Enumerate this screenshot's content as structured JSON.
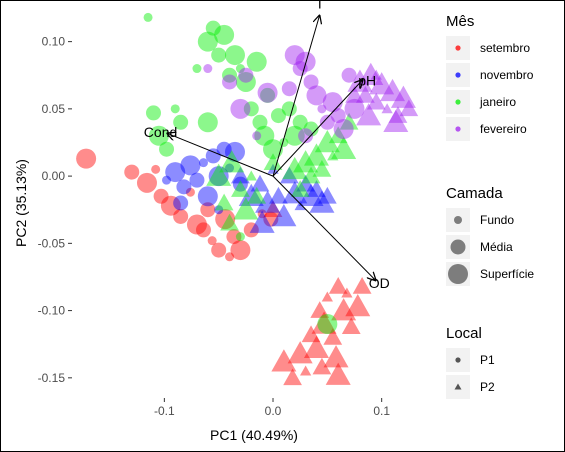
{
  "chart_data": {
    "type": "scatter",
    "title": "",
    "xlabel": "PC1 (40.49%)",
    "ylabel": "PC2 (35.13%)",
    "xlim": [
      -0.185,
      0.15
    ],
    "ylim": [
      -0.165,
      0.125
    ],
    "x_ticks": [
      -0.1,
      0.0,
      0.1
    ],
    "x_tick_labels": [
      "-0.1",
      "0.0",
      "0.1"
    ],
    "y_ticks": [
      -0.15,
      -0.1,
      -0.05,
      0.0,
      0.05,
      0.1
    ],
    "y_tick_labels": [
      "-0.15",
      "-0.10",
      "-0.05",
      "0.00",
      "0.05",
      "0.10"
    ],
    "grid": false,
    "colors": {
      "setembro": "#ff0000",
      "novembro": "#0000ff",
      "janeiro": "#00ee00",
      "fevereiro": "#a020f0"
    },
    "vectors": [
      {
        "label": "T",
        "x": 0.043,
        "y": 0.12
      },
      {
        "label": "pH",
        "x": 0.083,
        "y": 0.072
      },
      {
        "label": "Cond",
        "x": -0.098,
        "y": 0.032
      },
      {
        "label": "OD",
        "x": 0.095,
        "y": -0.078
      }
    ],
    "legends": [
      {
        "title": "Mês",
        "kind": "color",
        "items": [
          "setembro",
          "novembro",
          "janeiro",
          "fevereiro"
        ]
      },
      {
        "title": "Camada",
        "kind": "size",
        "items": [
          "Fundo",
          "Média",
          "Superfície"
        ]
      },
      {
        "title": "Local",
        "kind": "shape",
        "items": [
          "P1",
          "P2"
        ]
      }
    ],
    "legend_position": "right",
    "series": [
      {
        "name": "setembro",
        "points": [
          [
            -0.172,
            0.013,
            "P1",
            "Superfície"
          ],
          [
            -0.13,
            0.003,
            "P1",
            "Média"
          ],
          [
            -0.116,
            -0.005,
            "P1",
            "Superfície"
          ],
          [
            -0.103,
            -0.015,
            "P1",
            "Média"
          ],
          [
            -0.094,
            -0.022,
            "P1",
            "Superfície"
          ],
          [
            -0.085,
            -0.03,
            "P1",
            "Média"
          ],
          [
            -0.076,
            -0.012,
            "P1",
            "Fundo"
          ],
          [
            -0.07,
            -0.036,
            "P1",
            "Superfície"
          ],
          [
            -0.064,
            -0.04,
            "P1",
            "Média"
          ],
          [
            -0.056,
            -0.048,
            "P1",
            "Fundo"
          ],
          [
            -0.05,
            -0.055,
            "P1",
            "Média"
          ],
          [
            -0.044,
            -0.032,
            "P1",
            "Superfície"
          ],
          [
            -0.036,
            -0.045,
            "P1",
            "Média"
          ],
          [
            -0.03,
            -0.055,
            "P1",
            "Superfície"
          ],
          [
            -0.02,
            -0.04,
            "P1",
            "Média"
          ],
          [
            -0.01,
            -0.028,
            "P1",
            "Fundo"
          ],
          [
            -0.108,
            0.005,
            "P1",
            "Fundo"
          ],
          [
            -0.06,
            -0.025,
            "P1",
            "Média"
          ],
          [
            -0.04,
            -0.06,
            "P1",
            "Fundo"
          ],
          [
            -0.002,
            -0.032,
            "P1",
            "Média"
          ],
          [
            0.0,
            -0.025,
            "P2",
            "Média"
          ],
          [
            0.01,
            -0.138,
            "P2",
            "Superfície"
          ],
          [
            0.018,
            -0.15,
            "P2",
            "Média"
          ],
          [
            0.025,
            -0.132,
            "P2",
            "Superfície"
          ],
          [
            0.03,
            -0.145,
            "P2",
            "Fundo"
          ],
          [
            0.035,
            -0.118,
            "P2",
            "Média"
          ],
          [
            0.04,
            -0.128,
            "P2",
            "Superfície"
          ],
          [
            0.043,
            -0.1,
            "P2",
            "Média"
          ],
          [
            0.047,
            -0.11,
            "P2",
            "Superfície"
          ],
          [
            0.05,
            -0.09,
            "P2",
            "Fundo"
          ],
          [
            0.055,
            -0.12,
            "P2",
            "Média"
          ],
          [
            0.058,
            -0.135,
            "P2",
            "Superfície"
          ],
          [
            0.06,
            -0.082,
            "P2",
            "Média"
          ],
          [
            0.065,
            -0.1,
            "P2",
            "Superfície"
          ],
          [
            0.068,
            -0.087,
            "P2",
            "Fundo"
          ],
          [
            0.072,
            -0.112,
            "P2",
            "Média"
          ],
          [
            0.078,
            -0.097,
            "P2",
            "Superfície"
          ],
          [
            0.082,
            -0.082,
            "P2",
            "Média"
          ],
          [
            0.06,
            -0.148,
            "P2",
            "Superfície"
          ],
          [
            0.045,
            -0.142,
            "P2",
            "Média"
          ]
        ]
      },
      {
        "name": "novembro",
        "points": [
          [
            -0.098,
            -0.003,
            "P1",
            "Fundo"
          ],
          [
            -0.09,
            0.003,
            "P1",
            "Superfície"
          ],
          [
            -0.082,
            -0.008,
            "P1",
            "Média"
          ],
          [
            -0.076,
            0.008,
            "P1",
            "Superfície"
          ],
          [
            -0.07,
            -0.003,
            "P1",
            "Média"
          ],
          [
            -0.064,
            0.01,
            "P1",
            "Fundo"
          ],
          [
            -0.06,
            -0.015,
            "P1",
            "Superfície"
          ],
          [
            -0.055,
            0.015,
            "P1",
            "Média"
          ],
          [
            -0.05,
            0.0,
            "P1",
            "Superfície"
          ],
          [
            -0.045,
            0.02,
            "P1",
            "Média"
          ],
          [
            -0.04,
            0.006,
            "P1",
            "Fundo"
          ],
          [
            -0.035,
            0.018,
            "P1",
            "Superfície"
          ],
          [
            -0.03,
            -0.006,
            "P1",
            "Média"
          ],
          [
            -0.085,
            -0.02,
            "P1",
            "Média"
          ],
          [
            -0.05,
            -0.025,
            "P1",
            "Fundo"
          ],
          [
            -0.03,
            0.0,
            "P2",
            "Média"
          ],
          [
            -0.02,
            -0.015,
            "P2",
            "Superfície"
          ],
          [
            -0.012,
            -0.006,
            "P2",
            "Média"
          ],
          [
            -0.005,
            -0.02,
            "P2",
            "Superfície"
          ],
          [
            0.0,
            0.005,
            "P2",
            "Fundo"
          ],
          [
            0.005,
            -0.015,
            "P2",
            "Média"
          ],
          [
            0.01,
            -0.03,
            "P2",
            "Superfície"
          ],
          [
            0.015,
            0.0,
            "P2",
            "Média"
          ],
          [
            0.02,
            -0.013,
            "P2",
            "Superfície"
          ],
          [
            0.025,
            -0.022,
            "P2",
            "Fundo"
          ],
          [
            0.03,
            -0.006,
            "P2",
            "Média"
          ],
          [
            0.035,
            -0.015,
            "P2",
            "Superfície"
          ],
          [
            0.04,
            -0.01,
            "P2",
            "Média"
          ],
          [
            0.045,
            -0.02,
            "P2",
            "Superfície"
          ],
          [
            0.05,
            -0.015,
            "P2",
            "Média"
          ],
          [
            -0.01,
            -0.035,
            "P2",
            "Superfície"
          ]
        ]
      },
      {
        "name": "janeiro",
        "points": [
          [
            -0.115,
            0.118,
            "P1",
            "Fundo"
          ],
          [
            -0.11,
            0.047,
            "P1",
            "Média"
          ],
          [
            -0.105,
            0.03,
            "P1",
            "Superfície"
          ],
          [
            -0.098,
            0.02,
            "P1",
            "Média"
          ],
          [
            -0.09,
            0.05,
            "P1",
            "Fundo"
          ],
          [
            -0.085,
            0.04,
            "P1",
            "Média"
          ],
          [
            -0.06,
            0.1,
            "P1",
            "Superfície"
          ],
          [
            -0.05,
            0.09,
            "P1",
            "Média"
          ],
          [
            -0.045,
            0.105,
            "P1",
            "Superfície"
          ],
          [
            -0.04,
            0.075,
            "P1",
            "Média"
          ],
          [
            -0.035,
            0.09,
            "P1",
            "Superfície"
          ],
          [
            -0.03,
            0.08,
            "P1",
            "Fundo"
          ],
          [
            -0.025,
            0.07,
            "P1",
            "Superfície"
          ],
          [
            -0.02,
            0.05,
            "P1",
            "Média"
          ],
          [
            -0.015,
            0.085,
            "P1",
            "Superfície"
          ],
          [
            -0.012,
            0.04,
            "P1",
            "Média"
          ],
          [
            -0.008,
            0.03,
            "P1",
            "Superfície"
          ],
          [
            -0.005,
            0.06,
            "P1",
            "Média"
          ],
          [
            0.0,
            0.02,
            "P1",
            "Superfície"
          ],
          [
            0.005,
            0.045,
            "P1",
            "Média"
          ],
          [
            0.01,
            0.025,
            "P1",
            "Fundo"
          ],
          [
            0.015,
            0.05,
            "P1",
            "Média"
          ],
          [
            0.02,
            0.03,
            "P1",
            "Superfície"
          ],
          [
            0.025,
            0.04,
            "P1",
            "Média"
          ],
          [
            -0.07,
            0.08,
            "P1",
            "Fundo"
          ],
          [
            -0.055,
            0.11,
            "P1",
            "Média"
          ],
          [
            0.05,
            -0.11,
            "P1",
            "Superfície"
          ],
          [
            -0.03,
            -0.045,
            "P1",
            "Fundo"
          ],
          [
            -0.06,
            0.04,
            "P1",
            "Superfície"
          ],
          [
            0.035,
            0.035,
            "P1",
            "Média"
          ],
          [
            -0.05,
            0.0,
            "P2",
            "Superfície"
          ],
          [
            -0.045,
            -0.02,
            "P2",
            "Média"
          ],
          [
            -0.038,
            0.01,
            "P2",
            "Superfície"
          ],
          [
            -0.03,
            -0.01,
            "P2",
            "Média"
          ],
          [
            -0.025,
            -0.025,
            "P2",
            "Superfície"
          ],
          [
            -0.02,
            0.0,
            "P2",
            "Fundo"
          ],
          [
            -0.015,
            -0.015,
            "P2",
            "Média"
          ],
          [
            0.02,
            0.005,
            "P2",
            "Superfície"
          ],
          [
            0.025,
            -0.01,
            "P2",
            "Média"
          ],
          [
            0.03,
            0.01,
            "P2",
            "Superfície"
          ],
          [
            0.035,
            0.0,
            "P2",
            "Média"
          ],
          [
            0.04,
            0.015,
            "P2",
            "Superfície"
          ],
          [
            0.045,
            0.005,
            "P2",
            "Média"
          ],
          [
            0.05,
            0.025,
            "P2",
            "Superfície"
          ],
          [
            0.055,
            0.015,
            "P2",
            "Fundo"
          ],
          [
            0.06,
            0.03,
            "P2",
            "Média"
          ],
          [
            0.065,
            0.02,
            "P2",
            "Superfície"
          ],
          [
            0.07,
            0.04,
            "P2",
            "Média"
          ],
          [
            -0.04,
            -0.035,
            "P2",
            "Média"
          ],
          [
            0.0,
            0.01,
            "P2",
            "Média"
          ]
        ]
      },
      {
        "name": "fevereiro",
        "points": [
          [
            -0.04,
            0.07,
            "P1",
            "Média"
          ],
          [
            -0.03,
            0.05,
            "P1",
            "Superfície"
          ],
          [
            -0.025,
            0.075,
            "P1",
            "Média"
          ],
          [
            -0.015,
            0.03,
            "P1",
            "Fundo"
          ],
          [
            -0.005,
            0.062,
            "P1",
            "Superfície"
          ],
          [
            0.015,
            0.065,
            "P1",
            "Média"
          ],
          [
            0.02,
            0.09,
            "P1",
            "Superfície"
          ],
          [
            0.025,
            0.08,
            "P1",
            "Média"
          ],
          [
            0.03,
            0.085,
            "P1",
            "Superfície"
          ],
          [
            0.035,
            0.07,
            "P1",
            "Média"
          ],
          [
            0.04,
            0.06,
            "P1",
            "Superfície"
          ],
          [
            0.045,
            0.05,
            "P1",
            "Fundo"
          ],
          [
            0.05,
            0.04,
            "P1",
            "Média"
          ],
          [
            0.055,
            0.055,
            "P1",
            "Superfície"
          ],
          [
            0.06,
            0.045,
            "P1",
            "Média"
          ],
          [
            0.065,
            0.035,
            "P1",
            "Superfície"
          ],
          [
            0.07,
            0.075,
            "P1",
            "Média"
          ],
          [
            0.075,
            0.05,
            "P1",
            "Superfície"
          ],
          [
            -0.06,
            0.08,
            "P1",
            "Fundo"
          ],
          [
            0.03,
            0.03,
            "P1",
            "Média"
          ],
          [
            0.08,
            0.07,
            "P2",
            "Superfície"
          ],
          [
            0.085,
            0.06,
            "P2",
            "Média"
          ],
          [
            0.09,
            0.075,
            "P2",
            "Superfície"
          ],
          [
            0.095,
            0.055,
            "P2",
            "Média"
          ],
          [
            0.1,
            0.068,
            "P2",
            "Superfície"
          ],
          [
            0.105,
            0.05,
            "P2",
            "Fundo"
          ],
          [
            0.11,
            0.063,
            "P2",
            "Superfície"
          ],
          [
            0.115,
            0.045,
            "P2",
            "Média"
          ],
          [
            0.12,
            0.058,
            "P2",
            "Superfície"
          ],
          [
            0.125,
            0.05,
            "P2",
            "Média"
          ],
          [
            0.075,
            0.06,
            "P2",
            "Média"
          ],
          [
            0.095,
            0.075,
            "P2",
            "Fundo"
          ],
          [
            0.113,
            0.04,
            "P2",
            "Superfície"
          ],
          [
            0.088,
            0.045,
            "P2",
            "Superfície"
          ]
        ]
      }
    ]
  }
}
